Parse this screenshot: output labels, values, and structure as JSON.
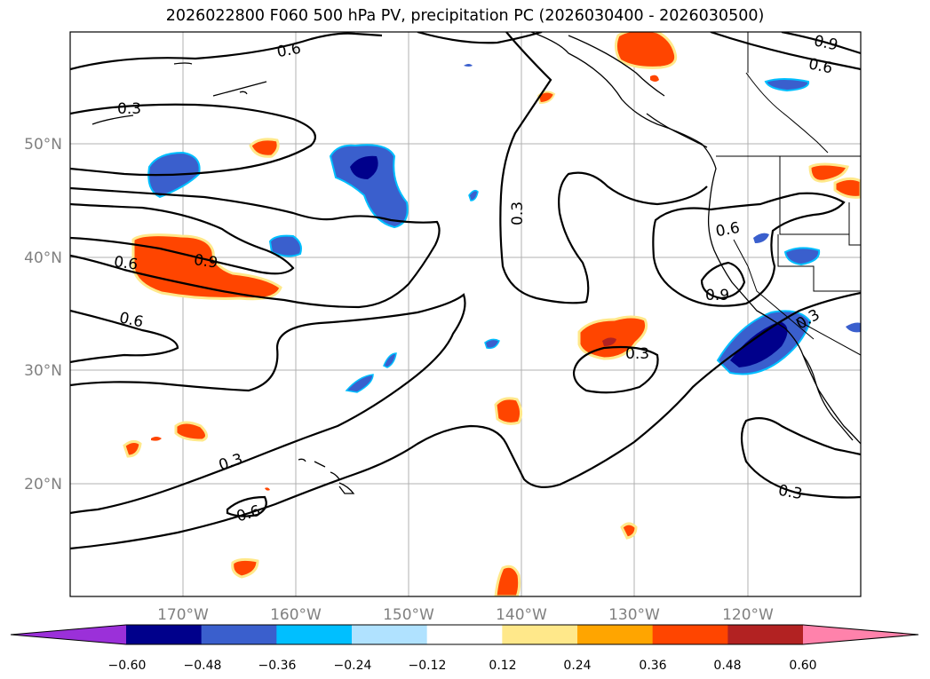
{
  "title": "2026022800 F060 500 hPa PV, precipitation PC (2026030400 - 2026030500)",
  "map": {
    "lon_ticks": [
      "170°W",
      "160°W",
      "150°W",
      "140°W",
      "130°W",
      "120°W"
    ],
    "lat_ticks": [
      "50°N",
      "40°N",
      "30°N",
      "20°N"
    ],
    "contour_labels": [
      "0.6",
      "0.3",
      "0.6",
      "0.9",
      "0.6",
      "0.3",
      "0.6",
      "0.3",
      "0.9",
      "0.6",
      "0.3",
      "0.9",
      "0.3",
      "0.3",
      "0.6",
      "0.9",
      "0.6"
    ]
  },
  "colorbar": {
    "colors": [
      "#9b30d9",
      "#00008b",
      "#3a5fcd",
      "#00bfff",
      "#b0e2ff",
      "#ffffff",
      "#ffe88a",
      "#ffa500",
      "#ff4500",
      "#b22222",
      "#ff82ab"
    ],
    "tick_labels": [
      "−0.60",
      "−0.48",
      "−0.36",
      "−0.24",
      "−0.12",
      "0.12",
      "0.24",
      "0.36",
      "0.48",
      "0.60"
    ]
  }
}
